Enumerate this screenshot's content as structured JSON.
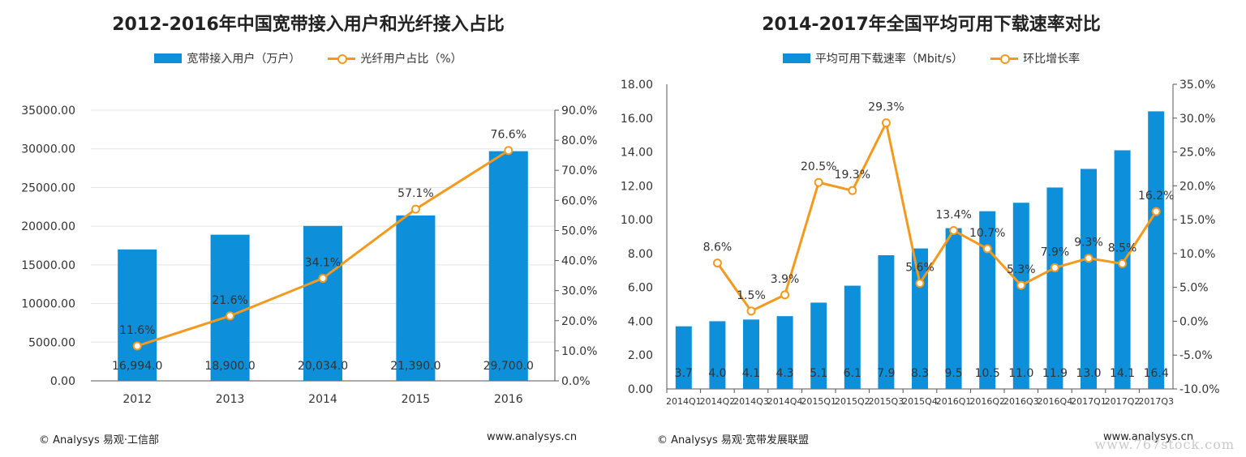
{
  "chart_data": [
    {
      "type": "bar",
      "title": "2012-2016年中国宽带接入用户和光纤接入占比",
      "categories": [
        "2012",
        "2013",
        "2014",
        "2015",
        "2016"
      ],
      "series": [
        {
          "name": "宽带接入用户（万户）",
          "kind": "bar",
          "axis": "left",
          "values": [
            16994.0,
            18900.0,
            20034.0,
            21390.0,
            29700.0
          ],
          "labels": [
            "16,994.0",
            "18,900.0",
            "20,034.0",
            "21,390.0",
            "29,700.0"
          ]
        },
        {
          "name": "光纤用户占比（%）",
          "kind": "line",
          "axis": "right",
          "values": [
            11.6,
            21.6,
            34.1,
            57.1,
            76.6
          ],
          "labels": [
            "11.6%",
            "21.6%",
            "34.1%",
            "57.1%",
            "76.6%"
          ]
        }
      ],
      "ylim": [
        0,
        35000
      ],
      "yticks": [
        "0.00",
        "5000.00",
        "10000.00",
        "15000.00",
        "20000.00",
        "25000.00",
        "30000.00",
        "35000.00"
      ],
      "y2lim": [
        0,
        90
      ],
      "y2ticks": [
        "0.0%",
        "10.0%",
        "20.0%",
        "30.0%",
        "40.0%",
        "50.0%",
        "60.0%",
        "70.0%",
        "80.0%",
        "90.0%"
      ],
      "grid": true,
      "legend": "top-center",
      "colors": {
        "bar": "#0d8fd9",
        "line": "#f39a1e"
      },
      "source": "© Analysys 易观·工信部",
      "site": "www.analysys.cn"
    },
    {
      "type": "bar",
      "title": "2014-2017年全国平均可用下载速率对比",
      "categories": [
        "2014Q1",
        "2014Q2",
        "2014Q3",
        "2014Q4",
        "2015Q1",
        "2015Q2",
        "2015Q3",
        "2015Q4",
        "2016Q1",
        "2016Q2",
        "2016Q3",
        "2016Q4",
        "2017Q1",
        "2017Q2",
        "2017Q3"
      ],
      "series": [
        {
          "name": "平均可用下载速率（Mbit/s）",
          "kind": "bar",
          "axis": "left",
          "values": [
            3.7,
            4.0,
            4.1,
            4.3,
            5.1,
            6.1,
            7.9,
            8.3,
            9.5,
            10.5,
            11.0,
            11.9,
            13.0,
            14.1,
            16.4
          ],
          "labels": [
            "3.7",
            "4.0",
            "4.1",
            "4.3",
            "5.1",
            "6.1",
            "7.9",
            "8.3",
            "9.5",
            "10.5",
            "11.0",
            "11.9",
            "13.0",
            "14.1",
            "16.4"
          ]
        },
        {
          "name": "环比增长率",
          "kind": "line",
          "axis": "right",
          "values": [
            null,
            8.6,
            1.5,
            3.9,
            20.5,
            19.3,
            29.3,
            5.6,
            13.4,
            10.7,
            5.3,
            7.9,
            9.3,
            8.5,
            16.2
          ],
          "labels": [
            "",
            "8.6%",
            "1.5%",
            "3.9%",
            "20.5%",
            "19.3%",
            "29.3%",
            "5.6%",
            "13.4%",
            "10.7%",
            "5.3%",
            "7.9%",
            "9.3%",
            "8.5%",
            "16.2%"
          ]
        }
      ],
      "ylim": [
        0,
        18
      ],
      "yticks": [
        "0.00",
        "2.00",
        "4.00",
        "6.00",
        "8.00",
        "10.00",
        "12.00",
        "14.00",
        "16.00",
        "18.00"
      ],
      "y2lim": [
        -10,
        35
      ],
      "y2ticks": [
        "-10.0%",
        "-5.0%",
        "0.0%",
        "5.0%",
        "10.0%",
        "15.0%",
        "20.0%",
        "25.0%",
        "30.0%",
        "35.0%"
      ],
      "grid": false,
      "legend": "top-center",
      "colors": {
        "bar": "#0d8fd9",
        "line": "#f39a1e"
      },
      "source": "© Analysys 易观·宽带发展联盟",
      "site": "www.analysys.cn"
    }
  ],
  "watermark": "www.767stock.com"
}
